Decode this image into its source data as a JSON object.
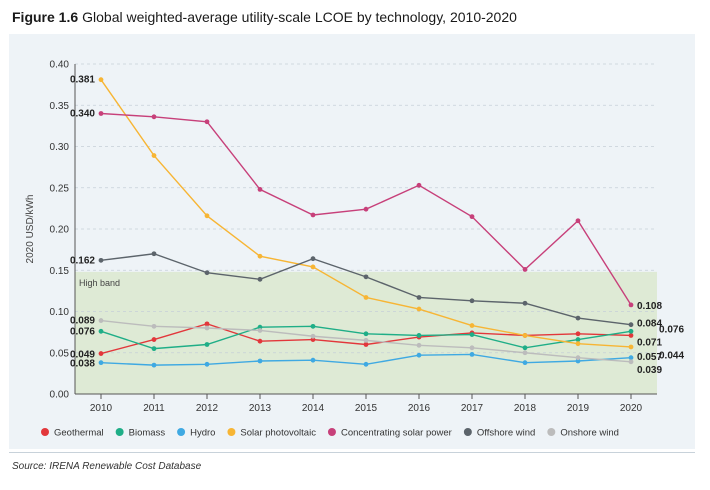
{
  "figure": {
    "number": "Figure 1.6",
    "caption": "Global weighted-average utility-scale LCOE by technology, 2010-2020",
    "source": "Source: IRENA Renewable Cost Database"
  },
  "chart_data": {
    "type": "line",
    "title": "Global weighted-average utility-scale LCOE by technology, 2010-2020",
    "xlabel": "",
    "ylabel": "2020 USD/kWh",
    "ylim": [
      0,
      0.4
    ],
    "yticks": [
      "0.00",
      "0.05",
      "0.10",
      "0.15",
      "0.20",
      "0.25",
      "0.30",
      "0.35",
      "0.40"
    ],
    "categories": [
      "2010",
      "2011",
      "2012",
      "2013",
      "2014",
      "2015",
      "2016",
      "2017",
      "2018",
      "2019",
      "2020"
    ],
    "band": {
      "label": "High band",
      "from": 0.0,
      "to": 0.148
    },
    "legend_position": "bottom",
    "series": [
      {
        "name": "Geothermal",
        "color": "#e2373b",
        "values": [
          0.049,
          0.066,
          0.085,
          0.064,
          0.066,
          0.06,
          0.069,
          0.074,
          0.071,
          0.073,
          0.071
        ],
        "start_label": "0.049",
        "end_label": "0.071"
      },
      {
        "name": "Biomass",
        "color": "#1fae87",
        "values": [
          0.076,
          0.055,
          0.06,
          0.081,
          0.082,
          0.073,
          0.071,
          0.072,
          0.056,
          0.066,
          0.076
        ],
        "start_label": "0.076",
        "end_label": "0.076"
      },
      {
        "name": "Hydro",
        "color": "#3fa9e2",
        "values": [
          0.038,
          0.035,
          0.036,
          0.04,
          0.041,
          0.036,
          0.047,
          0.048,
          0.038,
          0.04,
          0.044
        ],
        "start_label": "0.038",
        "end_label": "0.044"
      },
      {
        "name": "Solar photovoltaic",
        "color": "#f7b534",
        "values": [
          0.381,
          0.289,
          0.216,
          0.167,
          0.154,
          0.117,
          0.103,
          0.083,
          0.071,
          0.061,
          0.057
        ],
        "start_label": "0.381",
        "end_label": "0.057"
      },
      {
        "name": "Concentrating solar power",
        "color": "#c7407a",
        "values": [
          0.34,
          0.336,
          0.33,
          0.248,
          0.217,
          0.224,
          0.253,
          0.215,
          0.151,
          0.21,
          0.108
        ],
        "start_label": "0.340",
        "end_label": "0.108"
      },
      {
        "name": "Offshore wind",
        "color": "#5c646b",
        "values": [
          0.162,
          0.17,
          0.147,
          0.139,
          0.164,
          0.142,
          0.117,
          0.113,
          0.11,
          0.092,
          0.084
        ],
        "start_label": "0.162",
        "end_label": "0.084"
      },
      {
        "name": "Onshore wind",
        "color": "#bcbcbc",
        "values": [
          0.089,
          0.082,
          0.08,
          0.077,
          0.07,
          0.065,
          0.059,
          0.056,
          0.05,
          0.044,
          0.039
        ],
        "start_label": "0.089",
        "end_label": "0.039"
      }
    ]
  }
}
